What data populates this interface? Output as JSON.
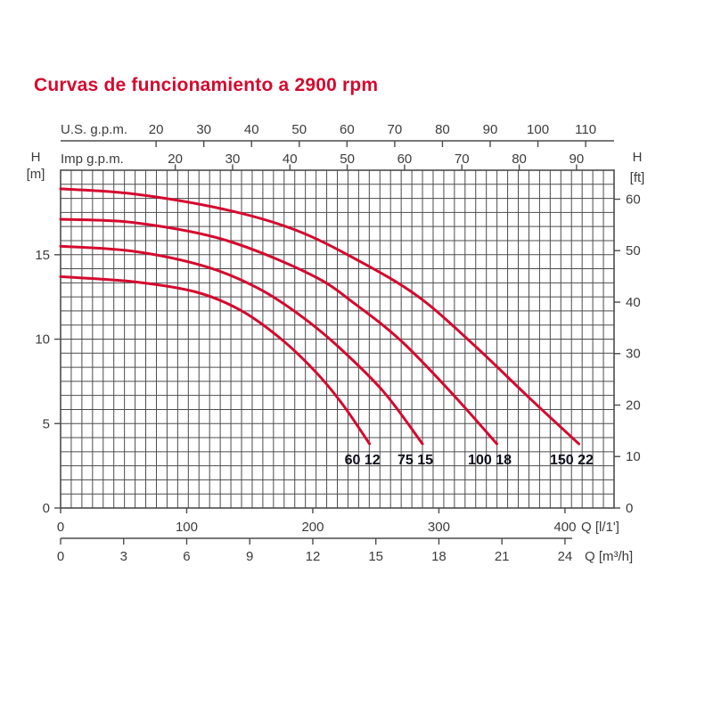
{
  "title": "Curvas de funcionamiento a 2900 rpm",
  "colors": {
    "accent_red": "#d5092e",
    "grid_line": "#4c4c4c",
    "axis_text": "#3c3c3c",
    "curve_label_text": "#10101e"
  },
  "axes": {
    "top_us": {
      "label": "U.S. g.p.m.",
      "ticks": [
        20,
        30,
        40,
        50,
        60,
        70,
        80,
        90,
        100,
        110
      ]
    },
    "top_imp": {
      "label": "Imp g.p.m.",
      "ticks": [
        20,
        30,
        40,
        50,
        60,
        70,
        80,
        90
      ]
    },
    "left": {
      "label_line1": "H",
      "label_line2": "[m]",
      "ticks": [
        0,
        5,
        10,
        15
      ]
    },
    "right": {
      "label_line1": "H",
      "label_line2": "[ft]",
      "ticks": [
        0,
        10,
        20,
        30,
        40,
        50,
        60
      ]
    },
    "bottom_lmin": {
      "label": "Q [l/1']",
      "ticks": [
        0,
        100,
        200,
        300,
        400
      ]
    },
    "bottom_m3h": {
      "label": "Q [m³/h]",
      "ticks": [
        0,
        3,
        6,
        9,
        12,
        15,
        18,
        21,
        24
      ]
    }
  },
  "chart_data": {
    "type": "line",
    "title": "Curvas de funcionamiento a 2900 rpm",
    "xlabel_primary": "Q [l/1']",
    "xlabel_secondary": "Q [m³/h]",
    "ylabel_left": "H [m]",
    "ylabel_right": "H [ft]",
    "x_range_lmin": [
      0,
      439
    ],
    "y_range_m": [
      0,
      20
    ],
    "grid": "on",
    "secondary_x_axes": [
      {
        "unit": "U.S. g.p.m.",
        "lmin_per_unit": 3.7854
      },
      {
        "unit": "Imp g.p.m.",
        "lmin_per_unit": 4.5461
      }
    ],
    "series": [
      {
        "name": "150 22",
        "points": [
          [
            0,
            18.9
          ],
          [
            58,
            18.6
          ],
          [
            129,
            17.7
          ],
          [
            185,
            16.5
          ],
          [
            235,
            14.7
          ],
          [
            284,
            12.5
          ],
          [
            330,
            9.5
          ],
          [
            372,
            6.5
          ],
          [
            411,
            3.8
          ]
        ]
      },
      {
        "name": "100 18",
        "points": [
          [
            0,
            17.1
          ],
          [
            58,
            16.9
          ],
          [
            129,
            15.9
          ],
          [
            199,
            13.8
          ],
          [
            235,
            12.0
          ],
          [
            270,
            9.9
          ],
          [
            309,
            6.9
          ],
          [
            346,
            3.8
          ]
        ]
      },
      {
        "name": "75 15",
        "points": [
          [
            0,
            15.5
          ],
          [
            58,
            15.2
          ],
          [
            115,
            14.3
          ],
          [
            157,
            13.0
          ],
          [
            192,
            11.3
          ],
          [
            221,
            9.5
          ],
          [
            256,
            6.9
          ],
          [
            287,
            3.8
          ]
        ]
      },
      {
        "name": "60 12",
        "points": [
          [
            0,
            13.7
          ],
          [
            58,
            13.4
          ],
          [
            107,
            12.8
          ],
          [
            143,
            11.7
          ],
          [
            175,
            10.0
          ],
          [
            203,
            8.0
          ],
          [
            224,
            6.1
          ],
          [
            245,
            3.8
          ]
        ]
      }
    ]
  }
}
